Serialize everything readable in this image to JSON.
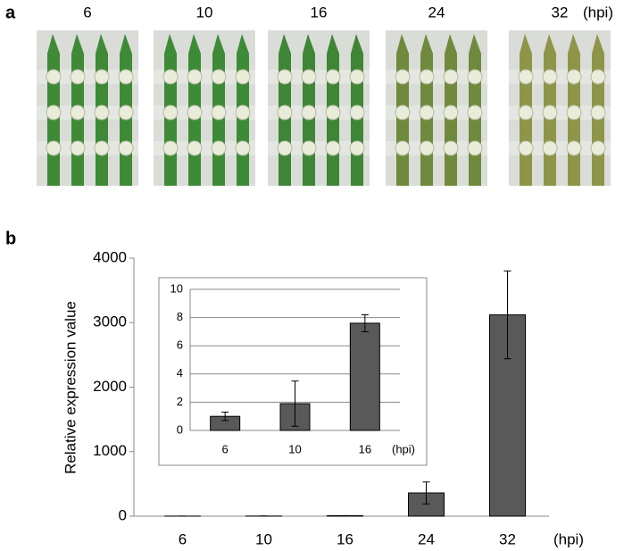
{
  "panel_a": {
    "label": "a",
    "times": [
      "6",
      "10",
      "16",
      "24",
      "32"
    ],
    "unit": "(hpi)"
  },
  "panel_b": {
    "label": "b"
  },
  "chart_data": [
    {
      "type": "bar",
      "ylabel": "Relative expression value",
      "xunit": "(hpi)",
      "categories": [
        "6",
        "10",
        "16",
        "24",
        "32"
      ],
      "values": [
        1.0,
        1.9,
        7.6,
        360,
        3120
      ],
      "errors": [
        0.3,
        1.6,
        0.6,
        170,
        680
      ],
      "color": "#595959",
      "ylim": [
        0,
        4000
      ],
      "yticks": [
        0,
        1000,
        2000,
        3000,
        4000
      ],
      "grid": false
    },
    {
      "type": "bar",
      "xunit": "(hpi)",
      "categories": [
        "6",
        "10",
        "16"
      ],
      "values": [
        1.0,
        1.9,
        7.6
      ],
      "errors": [
        0.3,
        1.6,
        0.6
      ],
      "color": "#595959",
      "ylim": [
        0,
        10
      ],
      "yticks": [
        0,
        2,
        4,
        6,
        8,
        10
      ],
      "grid": true
    }
  ]
}
